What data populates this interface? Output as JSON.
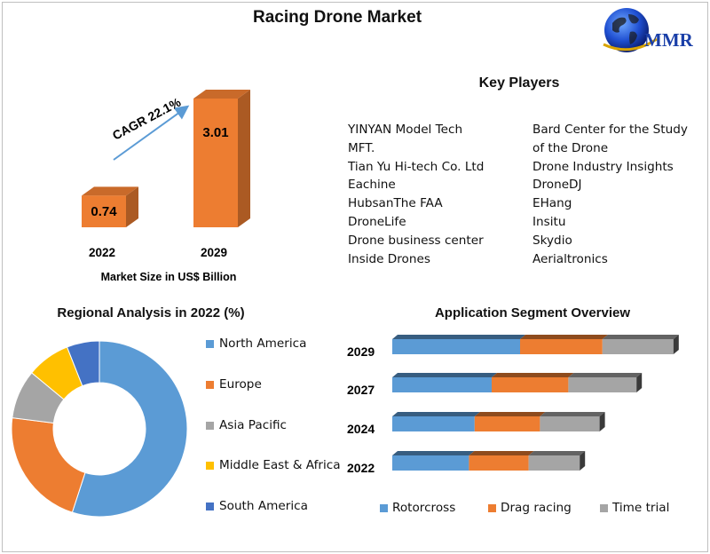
{
  "title": "Racing Drone Market",
  "logo": {
    "text": "MMR"
  },
  "colors": {
    "blue": "#5b9bd5",
    "orange": "#ed7d31",
    "gray": "#a5a5a5",
    "yellow": "#ffc000",
    "darkblue": "#4472c4"
  },
  "key_players": {
    "title": "Key Players",
    "left": [
      "YINYAN Model Tech",
      "MFT.",
      "Tian Yu Hi-tech Co. Ltd",
      "Eachine",
      "HubsanThe FAA",
      "DroneLife",
      "Drone business center",
      "Inside Drones"
    ],
    "right": [
      "Bard Center for the Study",
      "of the Drone",
      "Drone Industry Insights",
      "DroneDJ",
      "EHang",
      "Insitu",
      "Skydio",
      "Aerialtronics"
    ]
  },
  "chart_data": [
    {
      "type": "bar",
      "categories": [
        "2022",
        "2029"
      ],
      "values": [
        0.74,
        3.01
      ],
      "data_labels": [
        "0.74",
        "3.01"
      ],
      "xlabel": "Market Size in US$ Billion",
      "annotation": "CAGR 22.1%",
      "color": "#ed7d31"
    },
    {
      "type": "pie",
      "title": "Regional Analysis in 2022 (%)",
      "labels": [
        "North America",
        "Europe",
        "Asia Pacific",
        "Middle East & Africa",
        "South America"
      ],
      "values": [
        55,
        22,
        9,
        8,
        6
      ],
      "colors": [
        "#5b9bd5",
        "#ed7d31",
        "#a5a5a5",
        "#ffc000",
        "#4472c4"
      ],
      "legend": "right"
    },
    {
      "type": "bar",
      "orientation": "horizontal",
      "stacked": true,
      "title": "Application Segment Overview",
      "categories": [
        "2029",
        "2027",
        "2024",
        "2022"
      ],
      "series": [
        {
          "name": "Rotorcross",
          "values": [
            45,
            35,
            29,
            27
          ],
          "color": "#5b9bd5"
        },
        {
          "name": "Drag racing",
          "values": [
            29,
            27,
            23,
            21
          ],
          "color": "#ed7d31"
        },
        {
          "name": "Time trial",
          "values": [
            25,
            24,
            21,
            18
          ],
          "color": "#a5a5a5"
        }
      ],
      "legend": "bottom"
    }
  ]
}
